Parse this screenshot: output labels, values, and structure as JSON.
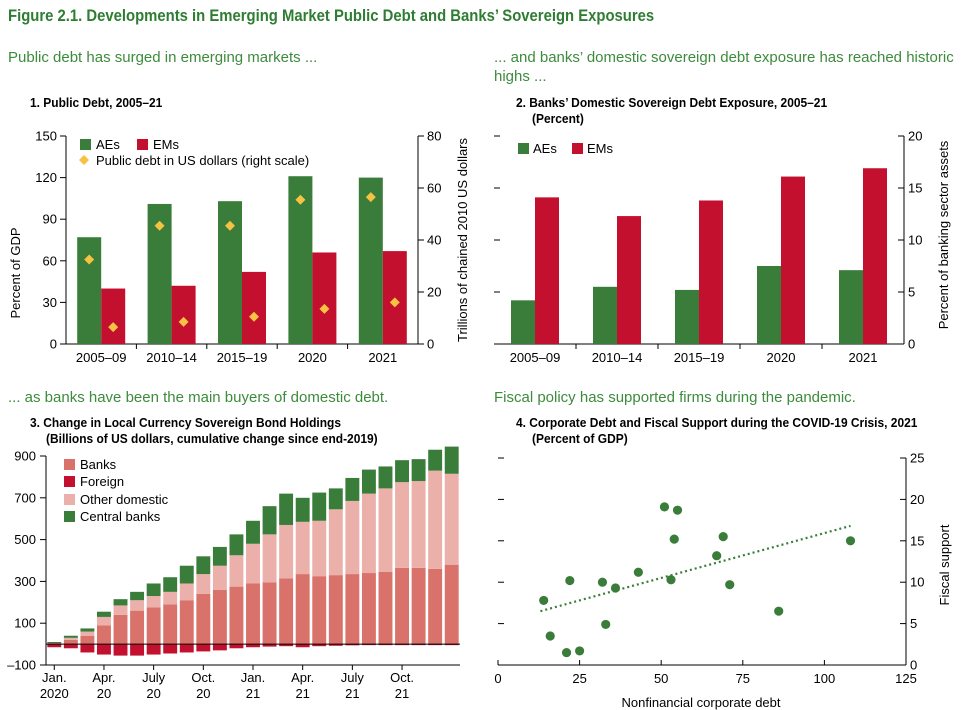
{
  "figure_title": "Figure 2.1. Developments in Emerging Market Public Debt and Banks’ Sovereign Exposures",
  "subtitles": {
    "p1": "Public debt has surged in emerging markets ...",
    "p2_line1": "... and banks’ domestic sovereign debt exposure has reached historic",
    "p2_line2": "highs ...",
    "p3": "... as banks have been the main buyers of domestic debt.",
    "p4": "Fiscal policy has supported firms during the pandemic."
  },
  "panel_titles": {
    "p1": "1. Public Debt, 2005–21",
    "p2_line1": "2. Banks’ Domestic Sovereign Debt Exposure, 2005–21",
    "p2_line2": "(Percent)",
    "p3_line1": "3. Change in Local Currency Sovereign Bond Holdings",
    "p3_line2": "(Billions of US dollars, cumulative change since end-2019)",
    "p4_line1": "4. Corporate Debt and Fiscal Support during the COVID-19 Crisis, 2021",
    "p4_line2": "(Percent of GDP)"
  },
  "colors": {
    "green": "#3a7d3a",
    "red": "#c4102f",
    "banks": "#d8726a",
    "other_domestic": "#ebb0aa",
    "diamond": "#f5c242",
    "title_green": "#2e7d32",
    "scatter": "#3a7d3a"
  },
  "chart_data": [
    {
      "type": "bar",
      "id": "public_debt",
      "categories": [
        "2005–09",
        "2010–14",
        "2015–19",
        "2020",
        "2021"
      ],
      "series": [
        {
          "name": "AEs",
          "values": [
            77,
            101,
            103,
            121,
            120
          ]
        },
        {
          "name": "EMs",
          "values": [
            40,
            42,
            52,
            66,
            67
          ]
        }
      ],
      "right_series": {
        "name": "Public debt in US dollars (right scale)",
        "aes": [
          32.5,
          45.5,
          45.5,
          55.5,
          56.5
        ],
        "ems": [
          6.5,
          8.5,
          10.5,
          13.5,
          16.0
        ]
      },
      "ylabel": "Percent of GDP",
      "ylabel_right": "Trillions of chained 2010 US dollars",
      "yticks": [
        "0",
        "30",
        "60",
        "90",
        "120",
        "150"
      ],
      "yticks_right": [
        "0",
        "20",
        "40",
        "60",
        "80"
      ],
      "ylim": [
        0,
        150
      ],
      "ylim_right": [
        0,
        80
      ]
    },
    {
      "type": "bar",
      "id": "sovereign_exposure",
      "categories": [
        "2005–09",
        "2010–14",
        "2015–19",
        "2020",
        "2021"
      ],
      "series": [
        {
          "name": "AEs",
          "values": [
            4.2,
            5.5,
            5.2,
            7.5,
            7.1
          ]
        },
        {
          "name": "EMs",
          "values": [
            14.1,
            12.3,
            13.8,
            16.1,
            16.9
          ]
        }
      ],
      "ylabel_right": "Percent of banking sector assets",
      "yticks_right": [
        "0",
        "5",
        "10",
        "15",
        "20"
      ],
      "ylim": [
        0,
        20
      ]
    },
    {
      "type": "bar",
      "id": "bond_holdings",
      "stacked": true,
      "series": [
        {
          "name": "Banks",
          "values": [
            5,
            20,
            40,
            90,
            140,
            160,
            175,
            190,
            210,
            240,
            260,
            275,
            290,
            295,
            315,
            335,
            325,
            330,
            335,
            340,
            345,
            365,
            365,
            360,
            380
          ]
        },
        {
          "name": "Foreign",
          "values": [
            -15,
            -20,
            -40,
            -50,
            -55,
            -55,
            -50,
            -45,
            -40,
            -35,
            -30,
            -20,
            -15,
            -12,
            -10,
            -15,
            -10,
            -8,
            -6,
            -5,
            -5,
            -5,
            -5,
            -5,
            -5
          ]
        },
        {
          "name": "Other domestic",
          "values": [
            0,
            10,
            20,
            40,
            45,
            50,
            55,
            60,
            80,
            95,
            115,
            150,
            190,
            230,
            255,
            250,
            265,
            315,
            350,
            380,
            400,
            410,
            415,
            470,
            435
          ]
        },
        {
          "name": "Central banks",
          "values": [
            5,
            10,
            15,
            25,
            30,
            40,
            60,
            70,
            85,
            85,
            90,
            100,
            110,
            135,
            150,
            115,
            135,
            100,
            110,
            115,
            105,
            105,
            105,
            100,
            130
          ]
        }
      ],
      "xtick_labels": [
        [
          "Jan.",
          "2020"
        ],
        [
          "Apr.",
          "20"
        ],
        [
          "July",
          "20"
        ],
        [
          "Oct.",
          "20"
        ],
        [
          "Jan.",
          "21"
        ],
        [
          "Apr.",
          "21"
        ],
        [
          "July",
          "21"
        ],
        [
          "Oct.",
          "21"
        ]
      ],
      "yticks": [
        "–100",
        "100",
        "300",
        "500",
        "700",
        "900"
      ],
      "ylim": [
        -100,
        900
      ]
    },
    {
      "type": "scatter",
      "id": "corporate_fiscal",
      "points": [
        {
          "x": 14,
          "y": 7.8
        },
        {
          "x": 16,
          "y": 3.5
        },
        {
          "x": 21,
          "y": 1.5
        },
        {
          "x": 22,
          "y": 10.2
        },
        {
          "x": 25,
          "y": 1.7
        },
        {
          "x": 32,
          "y": 10.0
        },
        {
          "x": 33,
          "y": 4.9
        },
        {
          "x": 36,
          "y": 9.3
        },
        {
          "x": 43,
          "y": 11.2
        },
        {
          "x": 51,
          "y": 19.1
        },
        {
          "x": 53,
          "y": 10.3
        },
        {
          "x": 54,
          "y": 15.2
        },
        {
          "x": 55,
          "y": 18.7
        },
        {
          "x": 67,
          "y": 13.2
        },
        {
          "x": 69,
          "y": 15.5
        },
        {
          "x": 71,
          "y": 9.7
        },
        {
          "x": 86,
          "y": 6.5
        },
        {
          "x": 108,
          "y": 15.0
        }
      ],
      "trend": {
        "x": [
          13,
          108
        ],
        "y": [
          6.5,
          16.8
        ]
      },
      "xlabel": "Nonfinancial corporate debt",
      "ylabel_right": "Fiscal support",
      "xticks": [
        "0",
        "25",
        "50",
        "75",
        "100",
        "125"
      ],
      "yticks_right": [
        "0",
        "5",
        "10",
        "15",
        "20",
        "25"
      ],
      "xlim": [
        0,
        125
      ],
      "ylim": [
        0,
        25
      ]
    }
  ]
}
